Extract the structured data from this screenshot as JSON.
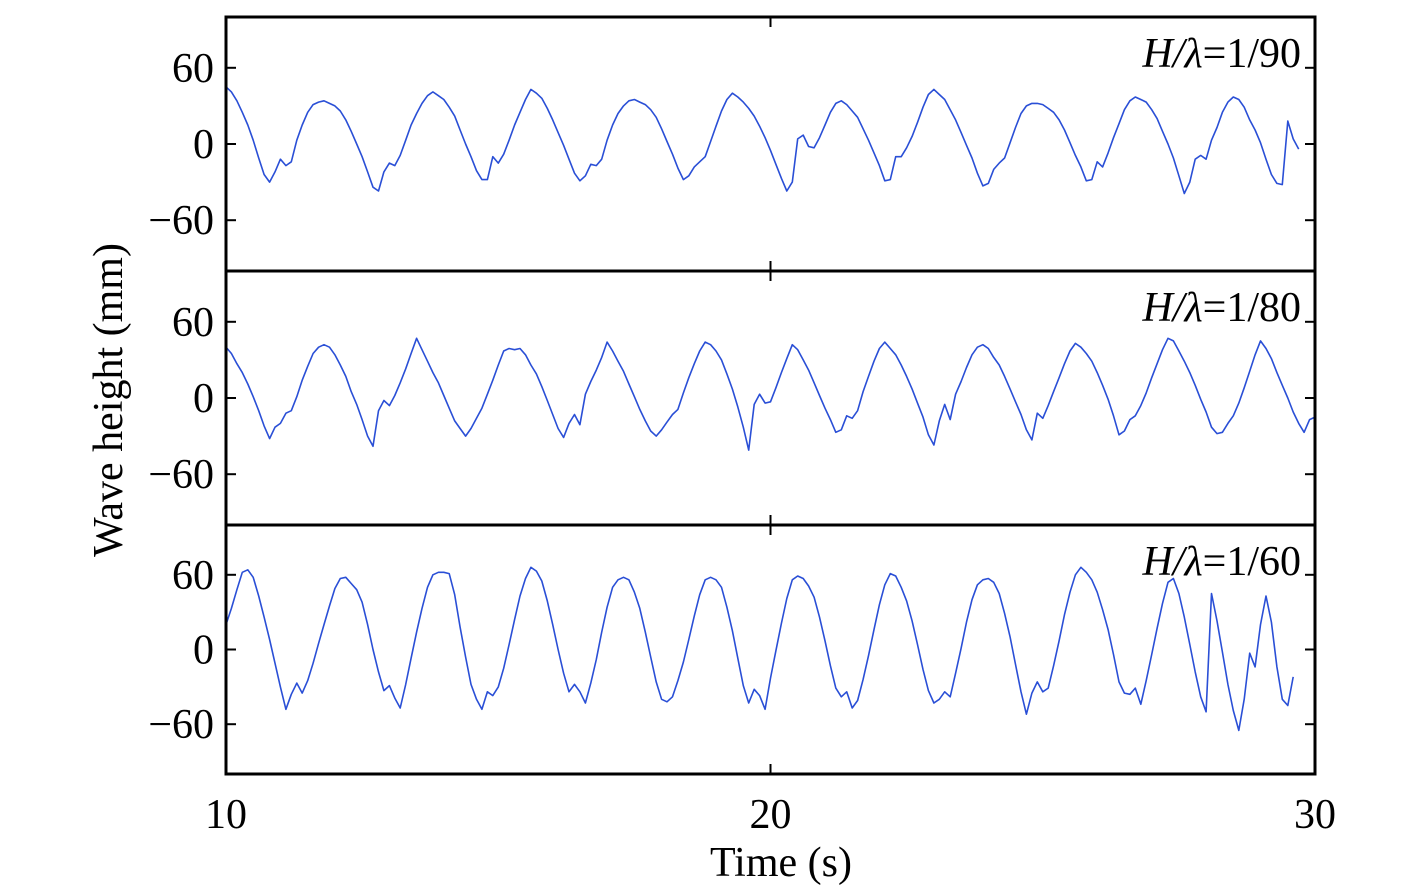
{
  "chart_data": {
    "type": "line",
    "xlabel": "Time (s)",
    "ylabel": "Wave height (mm)",
    "xlim": [
      10,
      30
    ],
    "x_ticks": [
      10,
      20,
      30
    ],
    "x_tick_labels": [
      "10",
      "20",
      "30"
    ],
    "y_ticks": [
      60,
      0,
      -60
    ],
    "y_tick_labels": [
      "60",
      "0",
      "−60"
    ],
    "sample_dt": 0.1,
    "line_color": "#2a4fd6",
    "panels": [
      {
        "label_italic": "H/λ",
        "label_value": "=1/90",
        "ylim": [
          -100,
          100
        ],
        "x_start": 10.0,
        "y": [
          45,
          41,
          34,
          25,
          15,
          3,
          -11,
          -24,
          -30,
          -22,
          -12,
          -17,
          -14,
          3,
          15,
          25,
          31,
          33,
          34,
          32,
          30,
          26,
          19,
          10,
          0,
          -10,
          -22,
          -34,
          -37,
          -22,
          -15,
          -17,
          -9,
          3,
          15,
          24,
          32,
          38,
          41,
          38,
          35,
          29,
          22,
          11,
          0,
          -10,
          -21,
          -28,
          -28,
          -10,
          -15,
          -8,
          3,
          15,
          25,
          35,
          43,
          40,
          36,
          28,
          19,
          9,
          -1,
          -12,
          -23,
          -29,
          -25,
          -16,
          -17,
          -12,
          3,
          15,
          24,
          30,
          34,
          35,
          33,
          31,
          27,
          21,
          12,
          2,
          -8,
          -19,
          -28,
          -25,
          -18,
          -14,
          -10,
          2,
          14,
          26,
          35,
          40,
          37,
          33,
          28,
          22,
          14,
          5,
          -5,
          -16,
          -27,
          -37,
          -30,
          4,
          7,
          -2,
          -3,
          5,
          15,
          25,
          32,
          34,
          31,
          26,
          21,
          12,
          3,
          -7,
          -17,
          -29,
          -28,
          -10,
          -10,
          -3,
          6,
          17,
          29,
          39,
          43,
          39,
          35,
          27,
          19,
          9,
          -1,
          -11,
          -23,
          -33,
          -31,
          -20,
          -15,
          -11,
          1,
          13,
          24,
          30,
          32,
          32,
          31,
          28,
          25,
          19,
          11,
          1,
          -9,
          -18,
          -29,
          -28,
          -14,
          -18,
          -7,
          5,
          16,
          27,
          34,
          37,
          35,
          33,
          27,
          20,
          10,
          0,
          -11,
          -25,
          -39,
          -30,
          -12,
          -9,
          -12,
          3,
          13,
          25,
          33,
          37,
          35,
          29,
          19,
          11,
          1,
          -12,
          -24,
          -31,
          -32,
          18,
          4,
          -4
        ]
      },
      {
        "label_italic": "H/λ",
        "label_value": "=1/80",
        "ylim": [
          -100,
          100
        ],
        "x_start": 10.0,
        "y": [
          40,
          35,
          27,
          20,
          11,
          1,
          -10,
          -22,
          -32,
          -23,
          -20,
          -12,
          -10,
          1,
          14,
          25,
          35,
          40,
          42,
          40,
          34,
          26,
          17,
          5,
          -5,
          -17,
          -30,
          -38,
          -10,
          -2,
          -6,
          2,
          12,
          23,
          35,
          47,
          38,
          29,
          20,
          12,
          2,
          -8,
          -18,
          -24,
          -30,
          -24,
          -16,
          -8,
          3,
          14,
          26,
          37,
          39,
          38,
          39,
          34,
          26,
          19,
          9,
          -2,
          -13,
          -24,
          -31,
          -20,
          -13,
          -21,
          3,
          13,
          22,
          32,
          44,
          37,
          29,
          21,
          11,
          1,
          -9,
          -18,
          -26,
          -30,
          -25,
          -19,
          -13,
          -9,
          4,
          16,
          27,
          37,
          44,
          42,
          37,
          30,
          19,
          7,
          -7,
          -23,
          -41,
          -5,
          3,
          -4,
          -3,
          8,
          20,
          31,
          42,
          38,
          30,
          22,
          12,
          2,
          -8,
          -17,
          -27,
          -25,
          -14,
          -16,
          -10,
          5,
          17,
          29,
          39,
          44,
          39,
          34,
          26,
          17,
          7,
          -4,
          -15,
          -29,
          -37,
          -18,
          -5,
          -17,
          3,
          13,
          24,
          34,
          40,
          42,
          39,
          32,
          26,
          17,
          7,
          -3,
          -13,
          -25,
          -33,
          -12,
          -16,
          -6,
          5,
          16,
          27,
          37,
          43,
          40,
          35,
          29,
          20,
          10,
          -1,
          -14,
          -29,
          -26,
          -17,
          -14,
          -6,
          4,
          16,
          27,
          38,
          47,
          45,
          37,
          29,
          20,
          10,
          -1,
          -11,
          -23,
          -28,
          -27,
          -20,
          -14,
          -4,
          8,
          21,
          34,
          45,
          39,
          31,
          20,
          10,
          0,
          -11,
          -20,
          -27,
          -17,
          -15,
          13,
          14
        ]
      },
      {
        "label_italic": "H/λ",
        "label_value": "=1/60",
        "ylim": [
          -100,
          100
        ],
        "x_start": 10.0,
        "y": [
          20,
          33,
          48,
          62,
          64,
          58,
          43,
          26,
          8,
          -11,
          -30,
          -48,
          -36,
          -27,
          -35,
          -25,
          -11,
          5,
          20,
          35,
          49,
          57,
          58,
          53,
          48,
          38,
          20,
          0,
          -18,
          -33,
          -29,
          -39,
          -47,
          -28,
          -7,
          14,
          33,
          50,
          60,
          62,
          62,
          61,
          44,
          18,
          -6,
          -28,
          -40,
          -48,
          -34,
          -37,
          -30,
          -15,
          4,
          24,
          43,
          57,
          66,
          63,
          55,
          39,
          20,
          0,
          -19,
          -34,
          -28,
          -34,
          -43,
          -27,
          -8,
          14,
          34,
          50,
          56,
          58,
          56,
          46,
          33,
          14,
          -6,
          -26,
          -40,
          -42,
          -38,
          -25,
          -10,
          8,
          27,
          44,
          56,
          58,
          56,
          50,
          34,
          15,
          -7,
          -29,
          -43,
          -32,
          -37,
          -48,
          -23,
          -1,
          21,
          41,
          56,
          59,
          57,
          51,
          42,
          26,
          7,
          -13,
          -31,
          -38,
          -34,
          -47,
          -41,
          -24,
          -5,
          16,
          36,
          52,
          61,
          59,
          50,
          39,
          23,
          4,
          -16,
          -33,
          -43,
          -40,
          -34,
          -38,
          -19,
          1,
          22,
          40,
          52,
          56,
          57,
          54,
          45,
          29,
          10,
          -12,
          -34,
          -52,
          -35,
          -26,
          -34,
          -31,
          -13,
          7,
          28,
          46,
          60,
          66,
          62,
          56,
          46,
          32,
          16,
          -4,
          -26,
          -35,
          -36,
          -31,
          -44,
          -25,
          -4,
          17,
          37,
          54,
          57,
          45,
          26,
          4,
          -18,
          -38,
          -50,
          45,
          23,
          -2,
          -28,
          -49,
          -65,
          -40,
          -3,
          -14,
          20,
          43,
          22,
          -14,
          -40,
          -45,
          -22
        ]
      }
    ]
  }
}
